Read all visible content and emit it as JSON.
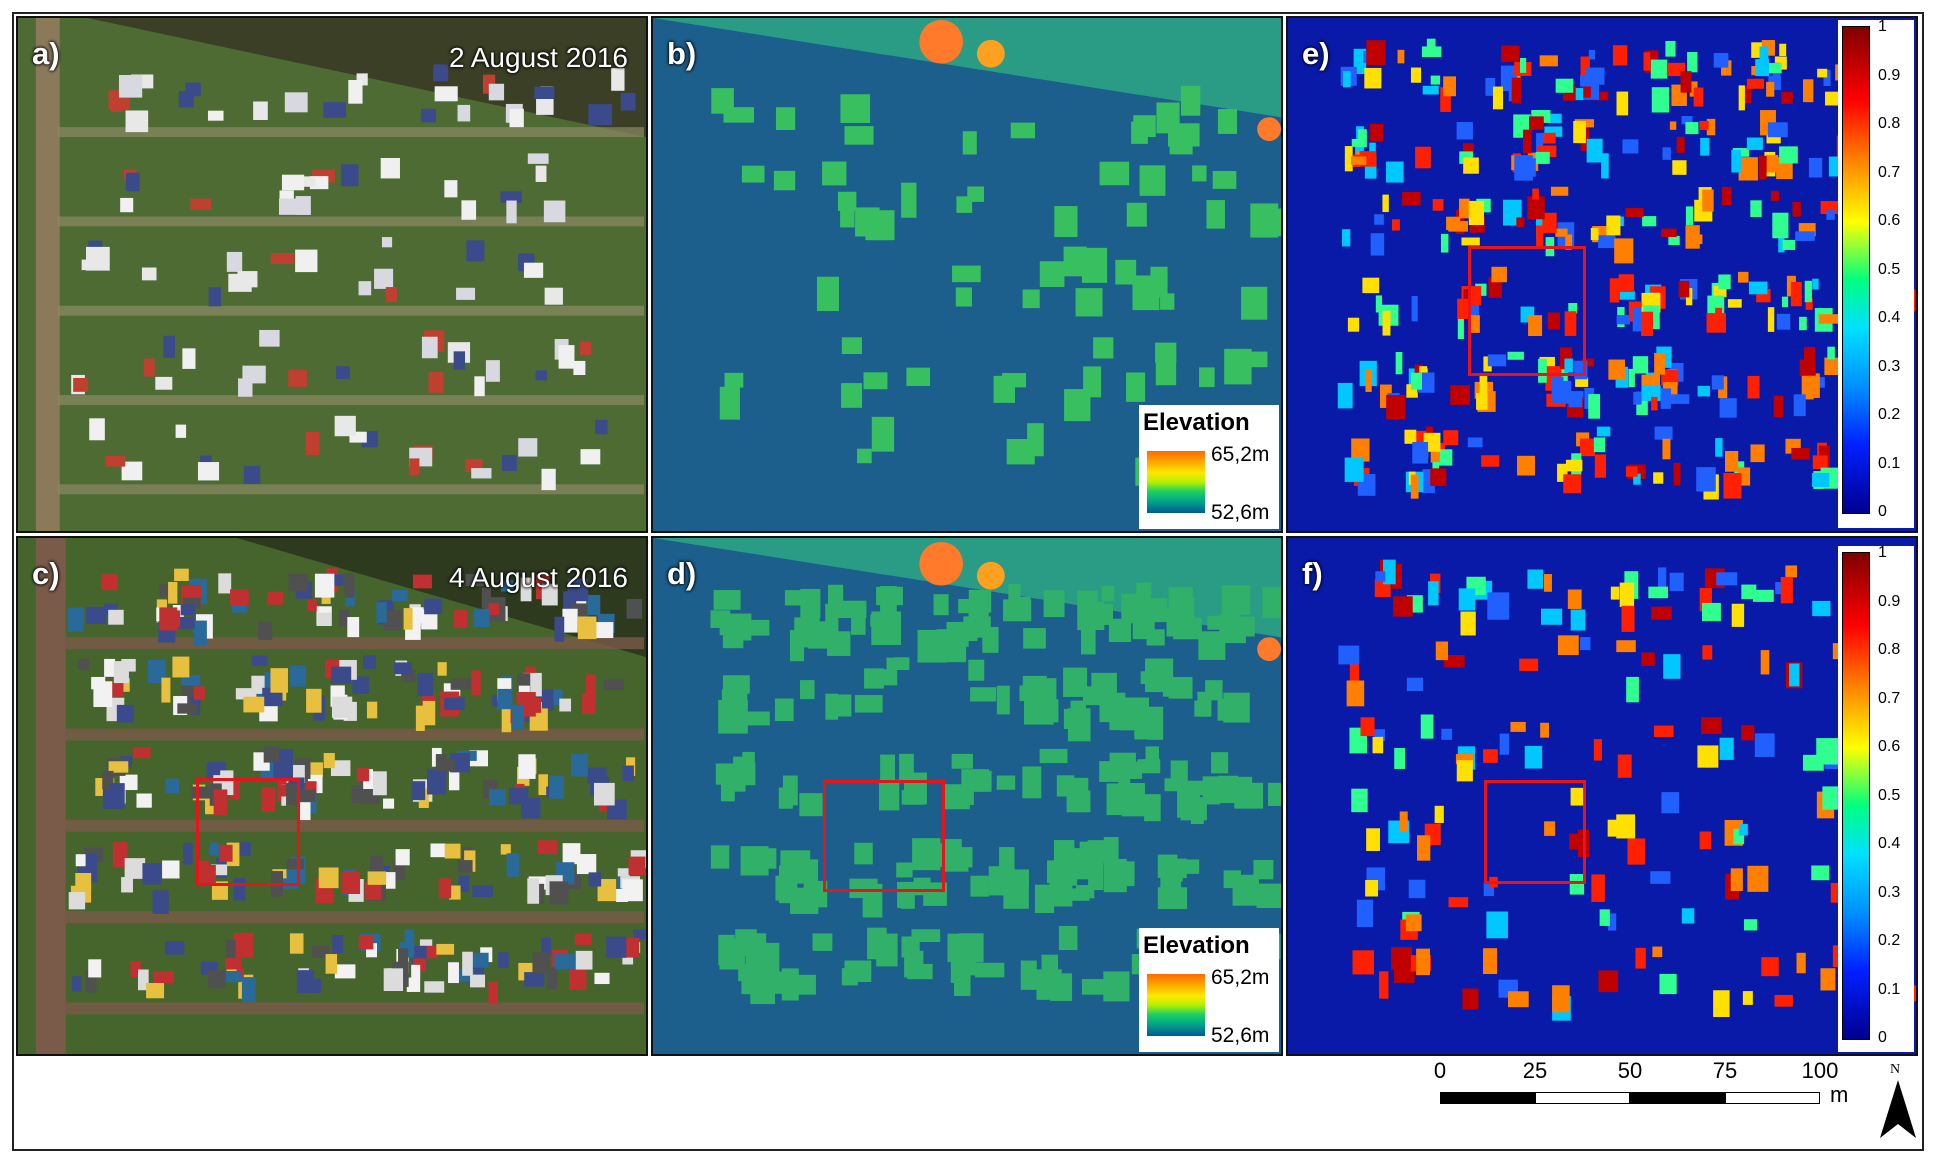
{
  "panels": {
    "a": {
      "label": "a)",
      "date": "2 August 2016"
    },
    "b": {
      "label": "b)"
    },
    "c": {
      "label": "c)",
      "date": "4 August 2016"
    },
    "d": {
      "label": "d)"
    },
    "e": {
      "label": "e)"
    },
    "f": {
      "label": "f)"
    }
  },
  "elevation_legend": {
    "title": "Elevation",
    "max": "65,2m",
    "min": "52,6m"
  },
  "probability_legend": {
    "ticks": [
      "1",
      "0.9",
      "0.8",
      "0.7",
      "0.6",
      "0.5",
      "0.4",
      "0.3",
      "0.2",
      "0.1",
      "0"
    ]
  },
  "scale_bar": {
    "labels": [
      "0",
      "25",
      "50",
      "75",
      "100"
    ],
    "unit": "m"
  },
  "north_arrow": {
    "label": "N"
  },
  "colors": {
    "highlight_box": "#e8141c",
    "field_green": "#3e6b2a",
    "dem_blue": "#1a5a8a",
    "prob_blue": "#0a1aa8"
  }
}
